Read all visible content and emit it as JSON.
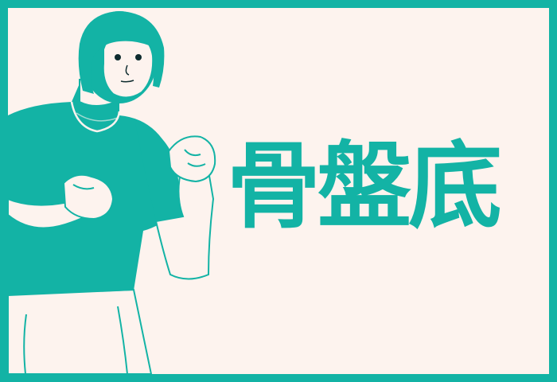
{
  "colors": {
    "accent": "#13b3a5",
    "background": "#fdf3ee",
    "line": "#ffffff"
  },
  "title": "骨盤底",
  "illustration": {
    "icon": "woman-flexing-illustration"
  }
}
